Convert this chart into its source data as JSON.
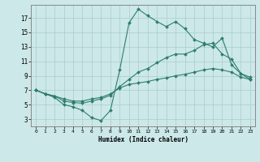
{
  "xlabel": "Humidex (Indice chaleur)",
  "ylabel": "",
  "background_color": "#cce8e8",
  "grid_color": "#aacccc",
  "line_color": "#2e7d6e",
  "xlim": [
    -0.5,
    23.5
  ],
  "ylim": [
    2.0,
    18.8
  ],
  "yticks": [
    3,
    5,
    7,
    9,
    11,
    13,
    15,
    17
  ],
  "xticks": [
    0,
    1,
    2,
    3,
    4,
    5,
    6,
    7,
    8,
    9,
    10,
    11,
    12,
    13,
    14,
    15,
    16,
    17,
    18,
    19,
    20,
    21,
    22,
    23
  ],
  "line1_y": [
    7.0,
    6.5,
    6.0,
    5.0,
    4.7,
    4.2,
    3.2,
    2.8,
    4.2,
    9.8,
    16.3,
    18.2,
    17.3,
    16.5,
    15.8,
    16.5,
    15.5,
    14.0,
    13.5,
    13.0,
    14.2,
    10.5,
    9.3,
    8.5
  ],
  "line2_y": [
    7.0,
    6.5,
    6.2,
    5.5,
    5.3,
    5.2,
    5.5,
    5.8,
    6.3,
    7.5,
    8.5,
    9.5,
    10.0,
    10.8,
    11.5,
    12.0,
    12.0,
    12.5,
    13.3,
    13.5,
    12.0,
    11.3,
    9.3,
    8.8
  ],
  "line3_y": [
    7.0,
    6.5,
    6.2,
    5.8,
    5.5,
    5.5,
    5.8,
    6.0,
    6.5,
    7.3,
    7.8,
    8.0,
    8.2,
    8.5,
    8.7,
    9.0,
    9.2,
    9.5,
    9.8,
    10.0,
    9.8,
    9.5,
    8.8,
    8.5
  ],
  "xlabel_fontsize": 5.5,
  "ylabel_fontsize": 5.5,
  "tick_fontsize_x": 4.5,
  "tick_fontsize_y": 5.5
}
